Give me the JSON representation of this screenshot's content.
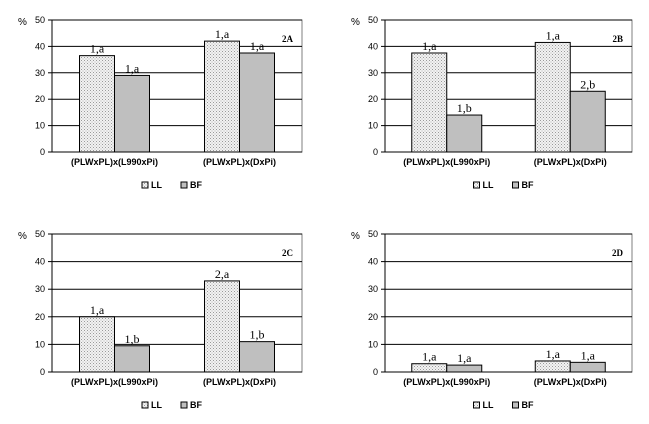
{
  "chart_data": [
    {
      "type": "bar",
      "panel": "2A",
      "y_unit": "%",
      "ylim": [
        0,
        50
      ],
      "yticks": [
        0,
        10,
        20,
        30,
        40,
        50
      ],
      "grid": true,
      "categories": [
        "(PLWxPL)x(L990xPi)",
        "(PLWxPL)x(DxPi)"
      ],
      "series": [
        {
          "name": "LL",
          "values": [
            36.5,
            42
          ],
          "labels": [
            "1,a",
            "1,a"
          ],
          "color": "#ececec"
        },
        {
          "name": "BF",
          "values": [
            29,
            37.5
          ],
          "labels": [
            "1,a",
            "1,a"
          ],
          "color": "#bfbfbf"
        }
      ],
      "legend_position": "bottom-center"
    },
    {
      "type": "bar",
      "panel": "2B",
      "y_unit": "%",
      "ylim": [
        0,
        50
      ],
      "yticks": [
        0,
        10,
        20,
        30,
        40,
        50
      ],
      "grid": true,
      "categories": [
        "(PLWxPL)x(L990xPi)",
        "(PLWxPL)x(DxPi)"
      ],
      "series": [
        {
          "name": "LL",
          "values": [
            37.5,
            41.5
          ],
          "labels": [
            "1,a",
            "1,a"
          ],
          "color": "#ececec"
        },
        {
          "name": "BF",
          "values": [
            14,
            23
          ],
          "labels": [
            "1,b",
            "2,b"
          ],
          "color": "#bfbfbf"
        }
      ],
      "legend_position": "bottom-center"
    },
    {
      "type": "bar",
      "panel": "2C",
      "y_unit": "%",
      "ylim": [
        0,
        50
      ],
      "yticks": [
        0,
        10,
        20,
        30,
        40,
        50
      ],
      "grid": true,
      "categories": [
        "(PLWxPL)x(L990xPi)",
        "(PLWxPL)x(DxPi)"
      ],
      "series": [
        {
          "name": "LL",
          "values": [
            20,
            33
          ],
          "labels": [
            "1,a",
            "2,a"
          ],
          "color": "#ececec"
        },
        {
          "name": "BF",
          "values": [
            9.5,
            11
          ],
          "labels": [
            "1,b",
            "1,b"
          ],
          "color": "#bfbfbf"
        }
      ],
      "legend_position": "bottom-center"
    },
    {
      "type": "bar",
      "panel": "2D",
      "y_unit": "%",
      "ylim": [
        0,
        50
      ],
      "yticks": [
        0,
        10,
        20,
        30,
        40,
        50
      ],
      "grid": true,
      "categories": [
        "(PLWxPL)x(L990xPi)",
        "(PLWxPL)x(DxPi)"
      ],
      "series": [
        {
          "name": "LL",
          "values": [
            3,
            4
          ],
          "labels": [
            "1,a",
            "1,a"
          ],
          "color": "#ececec"
        },
        {
          "name": "BF",
          "values": [
            2.5,
            3.5
          ],
          "labels": [
            "1,a",
            "1,a"
          ],
          "color": "#bfbfbf"
        }
      ],
      "legend_position": "bottom-center"
    }
  ]
}
